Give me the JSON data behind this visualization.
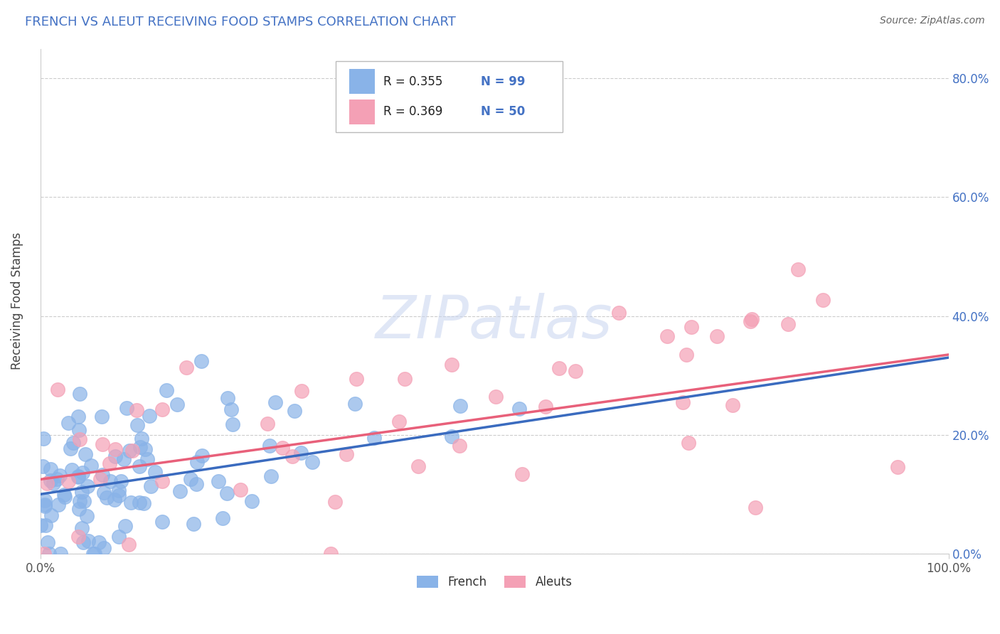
{
  "title": "FRENCH VS ALEUT RECEIVING FOOD STAMPS CORRELATION CHART",
  "source_text": "Source: ZipAtlas.com",
  "ylabel": "Receiving Food Stamps",
  "xlim": [
    0,
    100
  ],
  "ylim": [
    0,
    85
  ],
  "yticks_right_labels": [
    "0.0%",
    "20.0%",
    "40.0%",
    "60.0%",
    "80.0%"
  ],
  "yticks_right_values": [
    0,
    20,
    40,
    60,
    80
  ],
  "xtick_labels": [
    "0.0%",
    "100.0%"
  ],
  "xtick_values": [
    0,
    100
  ],
  "french_color": "#89b3e8",
  "aleut_color": "#f4a0b5",
  "french_line_color": "#3a6bbf",
  "aleut_line_color": "#e8607a",
  "legend_r_french": "R = 0.355",
  "legend_n_french": "N = 99",
  "legend_r_aleut": "R = 0.369",
  "legend_n_aleut": "N = 50",
  "watermark": "ZIPatlas",
  "title_color": "#4472c4",
  "title_fontsize": 13,
  "french_n": 99,
  "aleut_n": 50,
  "french_slope": 0.23,
  "french_intercept": 10.0,
  "aleut_slope": 0.21,
  "aleut_intercept": 12.5
}
